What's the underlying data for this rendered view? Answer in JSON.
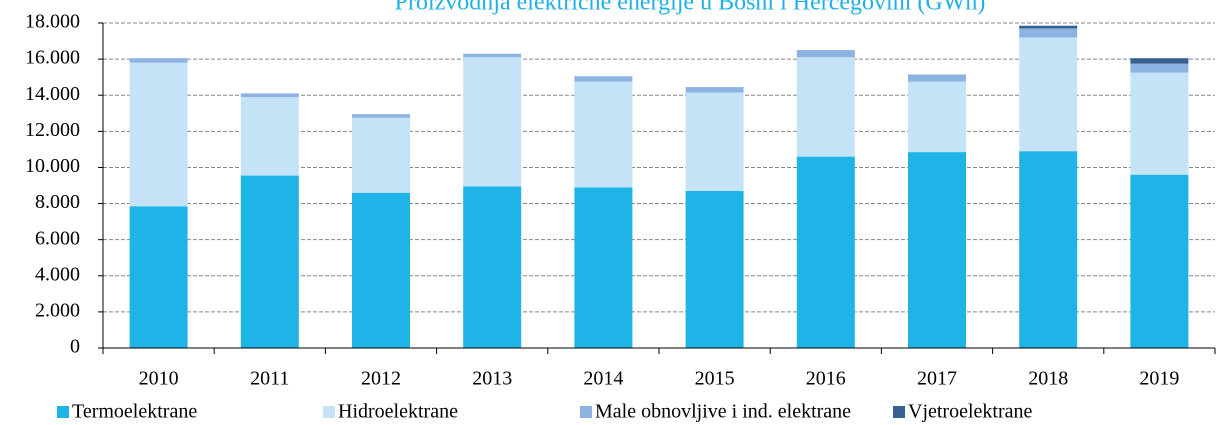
{
  "chart_data": {
    "type": "stacked_bar",
    "title": "Proizvodnja električne energije u Bosni i Hercegovini (GWh)",
    "categories": [
      "2010",
      "2011",
      "2012",
      "2013",
      "2014",
      "2015",
      "2016",
      "2017",
      "2018",
      "2019"
    ],
    "series": [
      {
        "name": "Termoelektrane",
        "color": "#1fb4e8",
        "values": [
          7850,
          9550,
          8600,
          8950,
          8900,
          8700,
          10600,
          10850,
          10900,
          9600
        ]
      },
      {
        "name": "Hidroelektrane",
        "color": "#c5e3f7",
        "values": [
          7950,
          4350,
          4150,
          7150,
          5850,
          5450,
          5500,
          3900,
          6300,
          5650
        ]
      },
      {
        "name": "Male obnovljive i ind. elektrane",
        "color": "#8db3e2",
        "values": [
          250,
          200,
          200,
          200,
          300,
          300,
          400,
          400,
          500,
          500
        ]
      },
      {
        "name": "Vjetroelektrane",
        "color": "#376092",
        "values": [
          0,
          0,
          0,
          0,
          0,
          0,
          0,
          0,
          150,
          300
        ]
      }
    ],
    "ylim": [
      0,
      18000
    ],
    "yticks": [
      0,
      {
        "value": 2000,
        "label": "2.000"
      },
      {
        "value": 4000,
        "label": "4.000"
      },
      {
        "value": 6000,
        "label": "6.000"
      },
      {
        "value": 8000,
        "label": "8.000"
      },
      {
        "value": 10000,
        "label": "10.000"
      },
      {
        "value": 12000,
        "label": "12.000"
      },
      {
        "value": 14000,
        "label": "14.000"
      },
      {
        "value": 16000,
        "label": "16.000"
      },
      {
        "value": 18000,
        "label": "18.000"
      }
    ],
    "grid": true,
    "legend": "bottom"
  }
}
